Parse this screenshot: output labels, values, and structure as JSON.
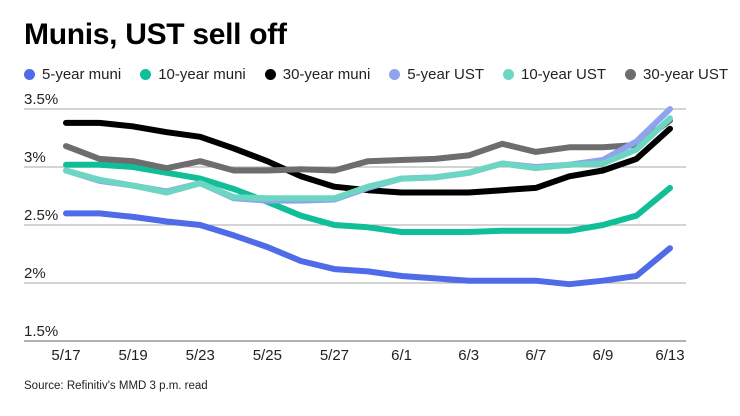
{
  "chart_data": {
    "type": "line",
    "title": "Munis, UST sell off",
    "xlabel": "",
    "ylabel": "",
    "ylim": [
      1.5,
      3.5
    ],
    "yticks": [
      {
        "value": 3.5,
        "label": "3.5%"
      },
      {
        "value": 3.0,
        "label": "3%"
      },
      {
        "value": 2.5,
        "label": "2.5%"
      },
      {
        "value": 2.0,
        "label": "2%"
      },
      {
        "value": 1.5,
        "label": "1.5%"
      }
    ],
    "grid": true,
    "legend_position": "top-left",
    "xtick_labels": [
      "5/17",
      "5/19",
      "5/23",
      "5/25",
      "5/27",
      "6/1",
      "6/3",
      "6/7",
      "6/9",
      "6/13"
    ],
    "x": [
      "5/17",
      "5/18",
      "5/19",
      "5/20",
      "5/23",
      "5/24",
      "5/25",
      "5/26",
      "5/27",
      "5/31",
      "6/1",
      "6/2",
      "6/3",
      "6/6",
      "6/7",
      "6/8",
      "6/9",
      "6/10",
      "6/13"
    ],
    "series": [
      {
        "name": "5-year muni",
        "color": "#4f6be8",
        "values": [
          2.6,
          2.6,
          2.57,
          2.53,
          2.5,
          2.41,
          2.31,
          2.19,
          2.12,
          2.1,
          2.06,
          2.04,
          2.02,
          2.02,
          2.02,
          1.99,
          2.02,
          2.06,
          2.3
        ]
      },
      {
        "name": "10-year muni",
        "color": "#10bf98",
        "values": [
          3.02,
          3.02,
          3.0,
          2.95,
          2.9,
          2.81,
          2.7,
          2.58,
          2.5,
          2.48,
          2.44,
          2.44,
          2.44,
          2.45,
          2.45,
          2.45,
          2.5,
          2.58,
          2.82
        ]
      },
      {
        "name": "30-year muni",
        "color": "#000000",
        "values": [
          3.38,
          3.38,
          3.35,
          3.3,
          3.26,
          3.16,
          3.05,
          2.92,
          2.83,
          2.8,
          2.78,
          2.78,
          2.78,
          2.8,
          2.82,
          2.92,
          2.97,
          3.07,
          3.33
        ]
      },
      {
        "name": "5-year UST",
        "color": "#8fa3ee",
        "values": [
          2.97,
          2.88,
          2.84,
          2.79,
          2.86,
          2.73,
          2.71,
          2.71,
          2.72,
          2.82,
          2.9,
          2.91,
          2.95,
          3.03,
          3.0,
          3.02,
          3.06,
          3.22,
          3.5
        ]
      },
      {
        "name": "10-year UST",
        "color": "#6dd6c2",
        "values": [
          2.97,
          2.89,
          2.84,
          2.78,
          2.86,
          2.74,
          2.73,
          2.73,
          2.73,
          2.83,
          2.9,
          2.91,
          2.95,
          3.03,
          2.99,
          3.02,
          3.03,
          3.15,
          3.42
        ]
      },
      {
        "name": "30-year UST",
        "color": "#6d6d6f",
        "values": [
          3.18,
          3.07,
          3.05,
          2.99,
          3.05,
          2.97,
          2.97,
          2.98,
          2.97,
          3.05,
          3.06,
          3.07,
          3.1,
          3.2,
          3.13,
          3.17,
          3.17,
          3.19,
          3.4
        ]
      }
    ],
    "source": "Source: Refinitiv's MMD 3 p.m. read"
  }
}
